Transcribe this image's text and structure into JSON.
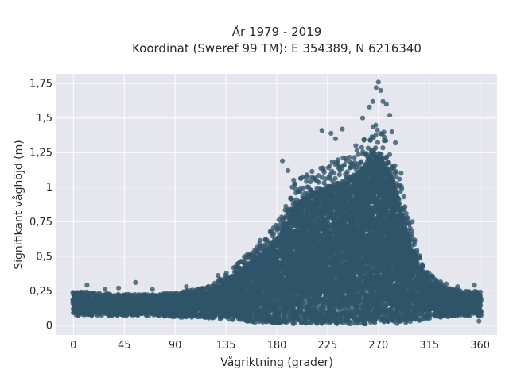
{
  "chart_data": {
    "type": "scatter",
    "title_line1": "År 1979 - 2019",
    "title_line2": "Koordinat (Sweref 99 TM): E 354389, N 6216340",
    "xlabel": "Vågriktning (grader)",
    "ylabel": "Signifikant våghöjd (m)",
    "xlim": [
      -15,
      375
    ],
    "ylim": [
      -0.07,
      1.82
    ],
    "x_ticks": [
      0,
      45,
      90,
      135,
      180,
      225,
      270,
      315,
      360
    ],
    "x_tick_labels": [
      "0",
      "45",
      "90",
      "135",
      "180",
      "225",
      "270",
      "315",
      "360"
    ],
    "y_ticks": [
      0,
      0.25,
      0.5,
      0.75,
      1,
      1.25,
      1.5,
      1.75
    ],
    "y_tick_labels": [
      "0",
      "0,25",
      "0,5",
      "0,75",
      "1",
      "1,25",
      "1,5",
      "1,75"
    ],
    "grid": true,
    "colors": {
      "points": "#2f5569",
      "plot_bg": "#e5e6ee",
      "grid": "#ffffff"
    },
    "envelope": {
      "direction_deg": [
        0,
        20,
        45,
        60,
        90,
        120,
        140,
        160,
        180,
        195,
        210,
        225,
        240,
        255,
        265,
        275,
        285,
        295,
        305,
        315,
        330,
        345,
        360
      ],
      "upper_m": [
        0.21,
        0.2,
        0.19,
        0.19,
        0.2,
        0.24,
        0.34,
        0.48,
        0.62,
        0.88,
        0.95,
        1.0,
        1.05,
        1.12,
        1.25,
        1.2,
        1.0,
        0.72,
        0.45,
        0.32,
        0.24,
        0.21,
        0.21
      ],
      "lower_m": [
        0.07,
        0.07,
        0.07,
        0.07,
        0.06,
        0.05,
        0.04,
        0.02,
        0.01,
        0.01,
        0.01,
        0.01,
        0.01,
        0.01,
        0.01,
        0.01,
        0.01,
        0.02,
        0.03,
        0.05,
        0.06,
        0.07,
        0.07
      ]
    },
    "outliers": [
      [
        12,
        0.29
      ],
      [
        28,
        0.26
      ],
      [
        40,
        0.27
      ],
      [
        55,
        0.31
      ],
      [
        70,
        0.26
      ],
      [
        100,
        0.28
      ],
      [
        128,
        0.36
      ],
      [
        145,
        0.42
      ],
      [
        160,
        0.5
      ],
      [
        185,
        1.19
      ],
      [
        190,
        1.12
      ],
      [
        195,
        1.05
      ],
      [
        210,
        0.98
      ],
      [
        220,
        1.41
      ],
      [
        228,
        1.39
      ],
      [
        232,
        1.35
      ],
      [
        238,
        1.42
      ],
      [
        245,
        1.18
      ],
      [
        250,
        1.3
      ],
      [
        256,
        1.5
      ],
      [
        262,
        1.58
      ],
      [
        265,
        1.62
      ],
      [
        268,
        1.72
      ],
      [
        270,
        1.76
      ],
      [
        272,
        1.7
      ],
      [
        274,
        1.62
      ],
      [
        277,
        1.6
      ],
      [
        280,
        1.52
      ],
      [
        282,
        1.4
      ],
      [
        285,
        1.32
      ],
      [
        290,
        1.1
      ],
      [
        300,
        0.75
      ],
      [
        330,
        0.3
      ],
      [
        340,
        0.28
      ],
      [
        355,
        0.29
      ],
      [
        359,
        0.03
      ]
    ]
  }
}
